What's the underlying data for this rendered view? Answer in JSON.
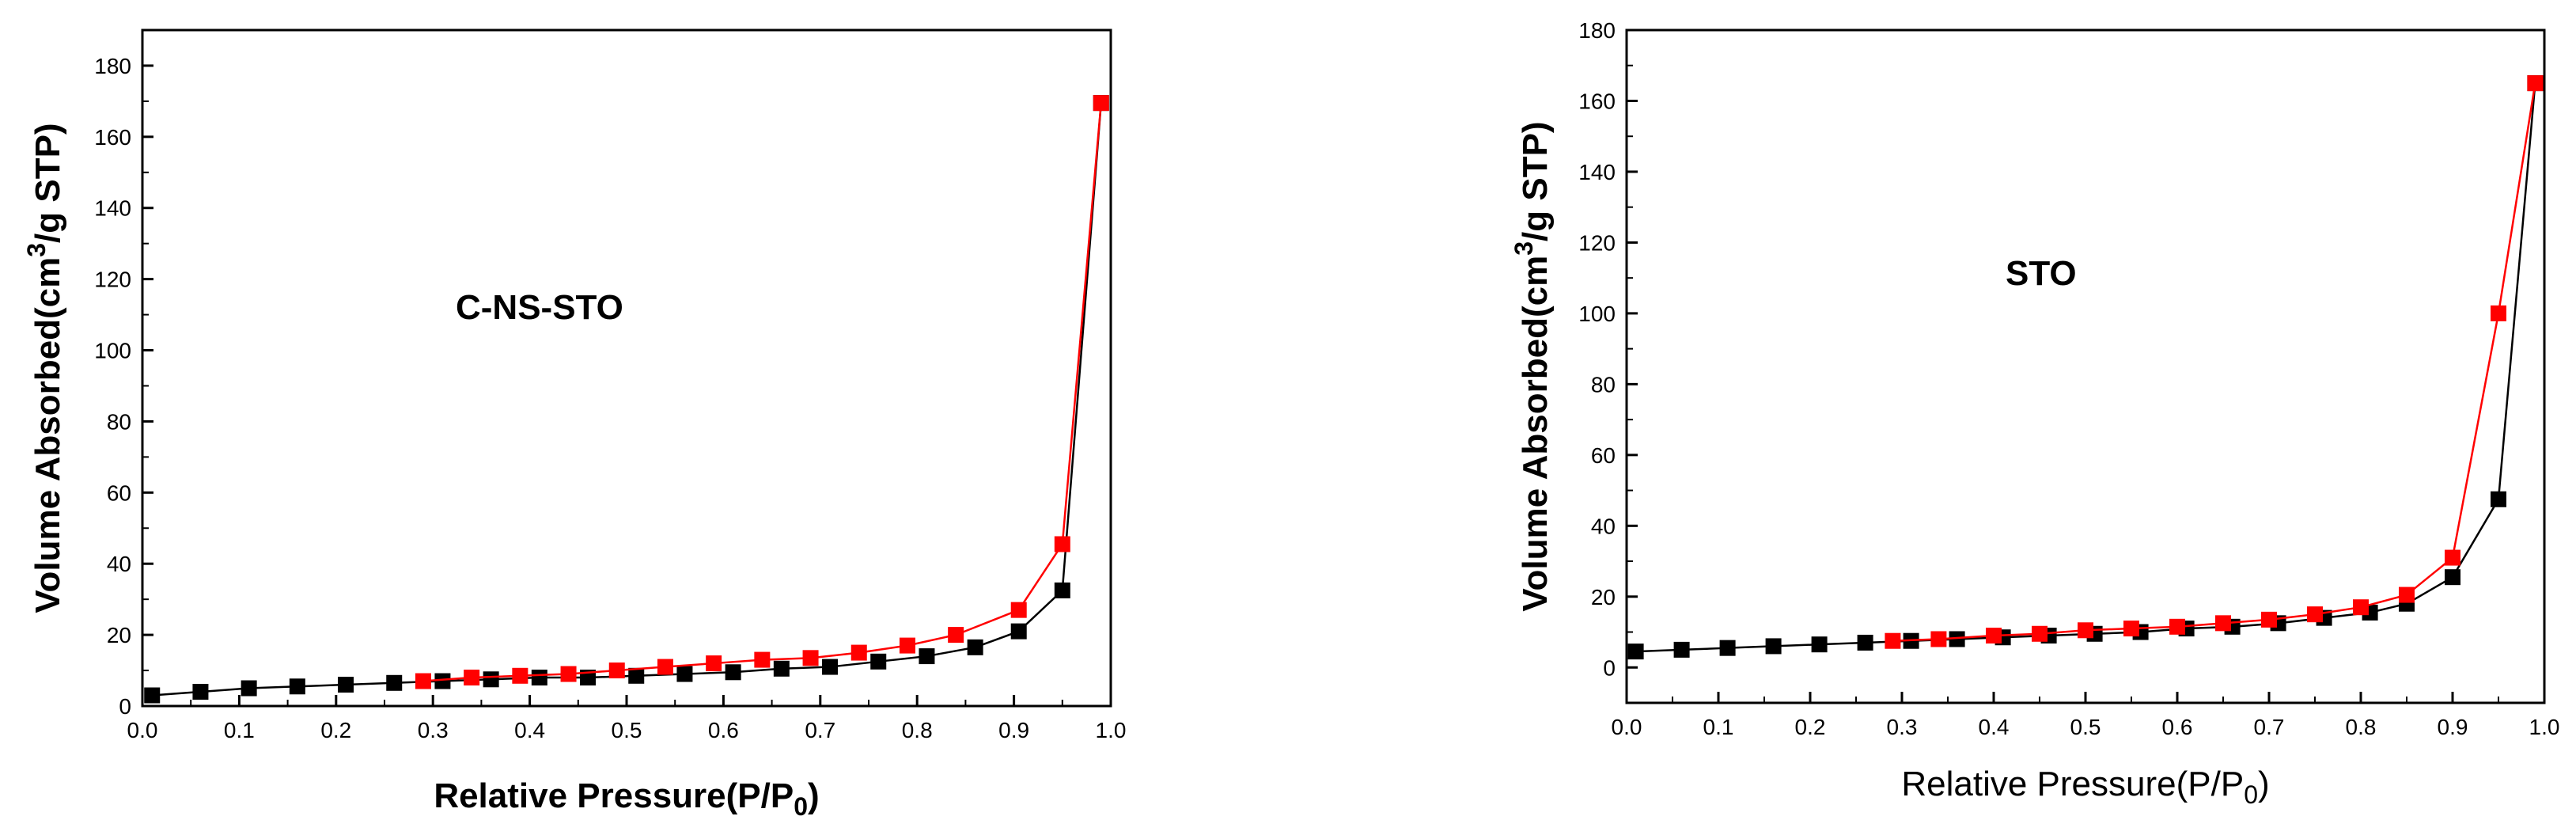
{
  "chart_data": [
    {
      "type": "scatter",
      "annotation": "C-NS-STO",
      "xlabel_main": "Relative Pressure(P/P",
      "xlabel_sub": "0",
      "xlabel_end": ")",
      "ylabel_main": "Volume Absorbed(cm",
      "ylabel_sup": "3",
      "ylabel_end": "/g STP)",
      "xlim": [
        0.0,
        1.0
      ],
      "ylim": [
        0,
        190
      ],
      "xticks": [
        "0.0",
        "0.1",
        "0.2",
        "0.3",
        "0.4",
        "0.5",
        "0.6",
        "0.7",
        "0.8",
        "0.9",
        "1.0"
      ],
      "yticks": [
        "0",
        "20",
        "40",
        "60",
        "80",
        "100",
        "120",
        "140",
        "160",
        "180"
      ],
      "ytick_values": [
        0,
        20,
        40,
        60,
        80,
        100,
        120,
        140,
        160,
        180
      ],
      "series": [
        {
          "color": "#000000",
          "x": [
            0.01,
            0.06,
            0.11,
            0.16,
            0.21,
            0.26,
            0.31,
            0.36,
            0.41,
            0.46,
            0.51,
            0.56,
            0.61,
            0.66,
            0.71,
            0.76,
            0.81,
            0.86,
            0.905,
            0.95,
            0.99
          ],
          "y": [
            3,
            4,
            5,
            5.5,
            6,
            6.5,
            7,
            7.5,
            8,
            8,
            8.5,
            9,
            9.5,
            10.5,
            11,
            12.5,
            14,
            16.5,
            21,
            32.5,
            169.5
          ]
        },
        {
          "color": "#ff0000",
          "x": [
            0.99,
            0.95,
            0.905,
            0.84,
            0.79,
            0.74,
            0.69,
            0.64,
            0.59,
            0.54,
            0.49,
            0.44,
            0.39,
            0.34,
            0.29
          ],
          "y": [
            169.5,
            45.5,
            27,
            20,
            17,
            15,
            13.5,
            13,
            12,
            11,
            10,
            9,
            8.5,
            8,
            7
          ]
        }
      ]
    },
    {
      "type": "scatter",
      "annotation": "STO",
      "xlabel_main": "Relative Pressure(P/P",
      "xlabel_sub": "0",
      "xlabel_end": ")",
      "ylabel_main": "Volume Absorbed(cm",
      "ylabel_sup": "3",
      "ylabel_end": "/g STP)",
      "xlim": [
        0.0,
        1.0
      ],
      "ylim": [
        -10,
        180
      ],
      "xticks": [
        "0.0",
        "0.1",
        "0.2",
        "0.3",
        "0.4",
        "0.5",
        "0.6",
        "0.7",
        "0.8",
        "0.9",
        "1.0"
      ],
      "yticks": [
        "0",
        "20",
        "40",
        "60",
        "80",
        "100",
        "120",
        "140",
        "160",
        "180"
      ],
      "ytick_values": [
        0,
        20,
        40,
        60,
        80,
        100,
        120,
        140,
        160,
        180
      ],
      "series": [
        {
          "color": "#000000",
          "x": [
            0.01,
            0.06,
            0.11,
            0.16,
            0.21,
            0.26,
            0.31,
            0.36,
            0.41,
            0.46,
            0.51,
            0.56,
            0.61,
            0.66,
            0.71,
            0.76,
            0.81,
            0.85,
            0.9,
            0.95,
            0.99
          ],
          "y": [
            4.5,
            5,
            5.5,
            6,
            6.5,
            7,
            7.5,
            8,
            8.5,
            9,
            9.5,
            10,
            11,
            11.5,
            12.5,
            14,
            15.5,
            18,
            25.5,
            47.5,
            165
          ]
        },
        {
          "color": "#ff0000",
          "x": [
            0.99,
            0.95,
            0.9,
            0.85,
            0.8,
            0.75,
            0.7,
            0.65,
            0.6,
            0.55,
            0.5,
            0.45,
            0.4,
            0.34,
            0.29
          ],
          "y": [
            165,
            100,
            31,
            20.5,
            17,
            15,
            13.5,
            12.5,
            11.5,
            11,
            10.5,
            9.5,
            9,
            8,
            7.5
          ]
        }
      ]
    }
  ]
}
